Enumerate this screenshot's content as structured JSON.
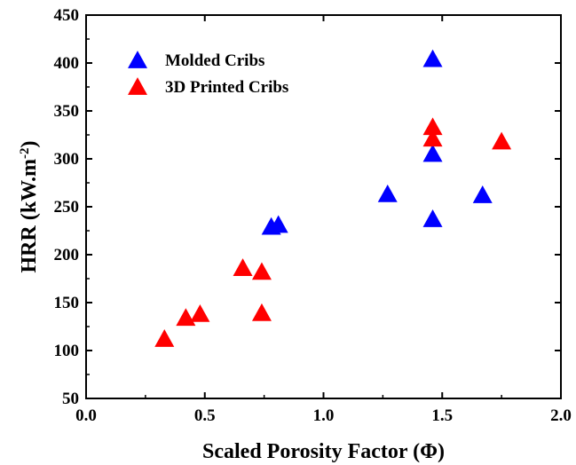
{
  "chart_data": {
    "type": "scatter",
    "title": "",
    "xlabel": "Scaled Porosity Factor (Φ)",
    "ylabel": "HRR (kW.m",
    "ylabel_superscript": "-2",
    "ylabel_suffix": ")",
    "xlim": [
      0.0,
      2.0
    ],
    "ylim": [
      50,
      450
    ],
    "x_ticks": [
      "0.0",
      "0.5",
      "1.0",
      "1.5",
      "2.0"
    ],
    "y_ticks": [
      "50",
      "100",
      "150",
      "200",
      "250",
      "300",
      "350",
      "400",
      "450"
    ],
    "grid": false,
    "legend_position": "top-left",
    "series": [
      {
        "name": "Molded Cribs",
        "color": "#0000ff",
        "marker": "triangle",
        "x": [
          0.78,
          0.81,
          1.27,
          1.46,
          1.46,
          1.46,
          1.67
        ],
        "y": [
          230,
          232,
          264,
          405,
          306,
          238,
          263
        ]
      },
      {
        "name": "3D Printed Cribs",
        "color": "#ff0000",
        "marker": "triangle",
        "x": [
          0.33,
          0.42,
          0.48,
          0.66,
          0.74,
          0.74,
          1.46,
          1.46,
          1.75
        ],
        "y": [
          113,
          135,
          139,
          187,
          183,
          140,
          334,
          322,
          319
        ]
      }
    ]
  }
}
